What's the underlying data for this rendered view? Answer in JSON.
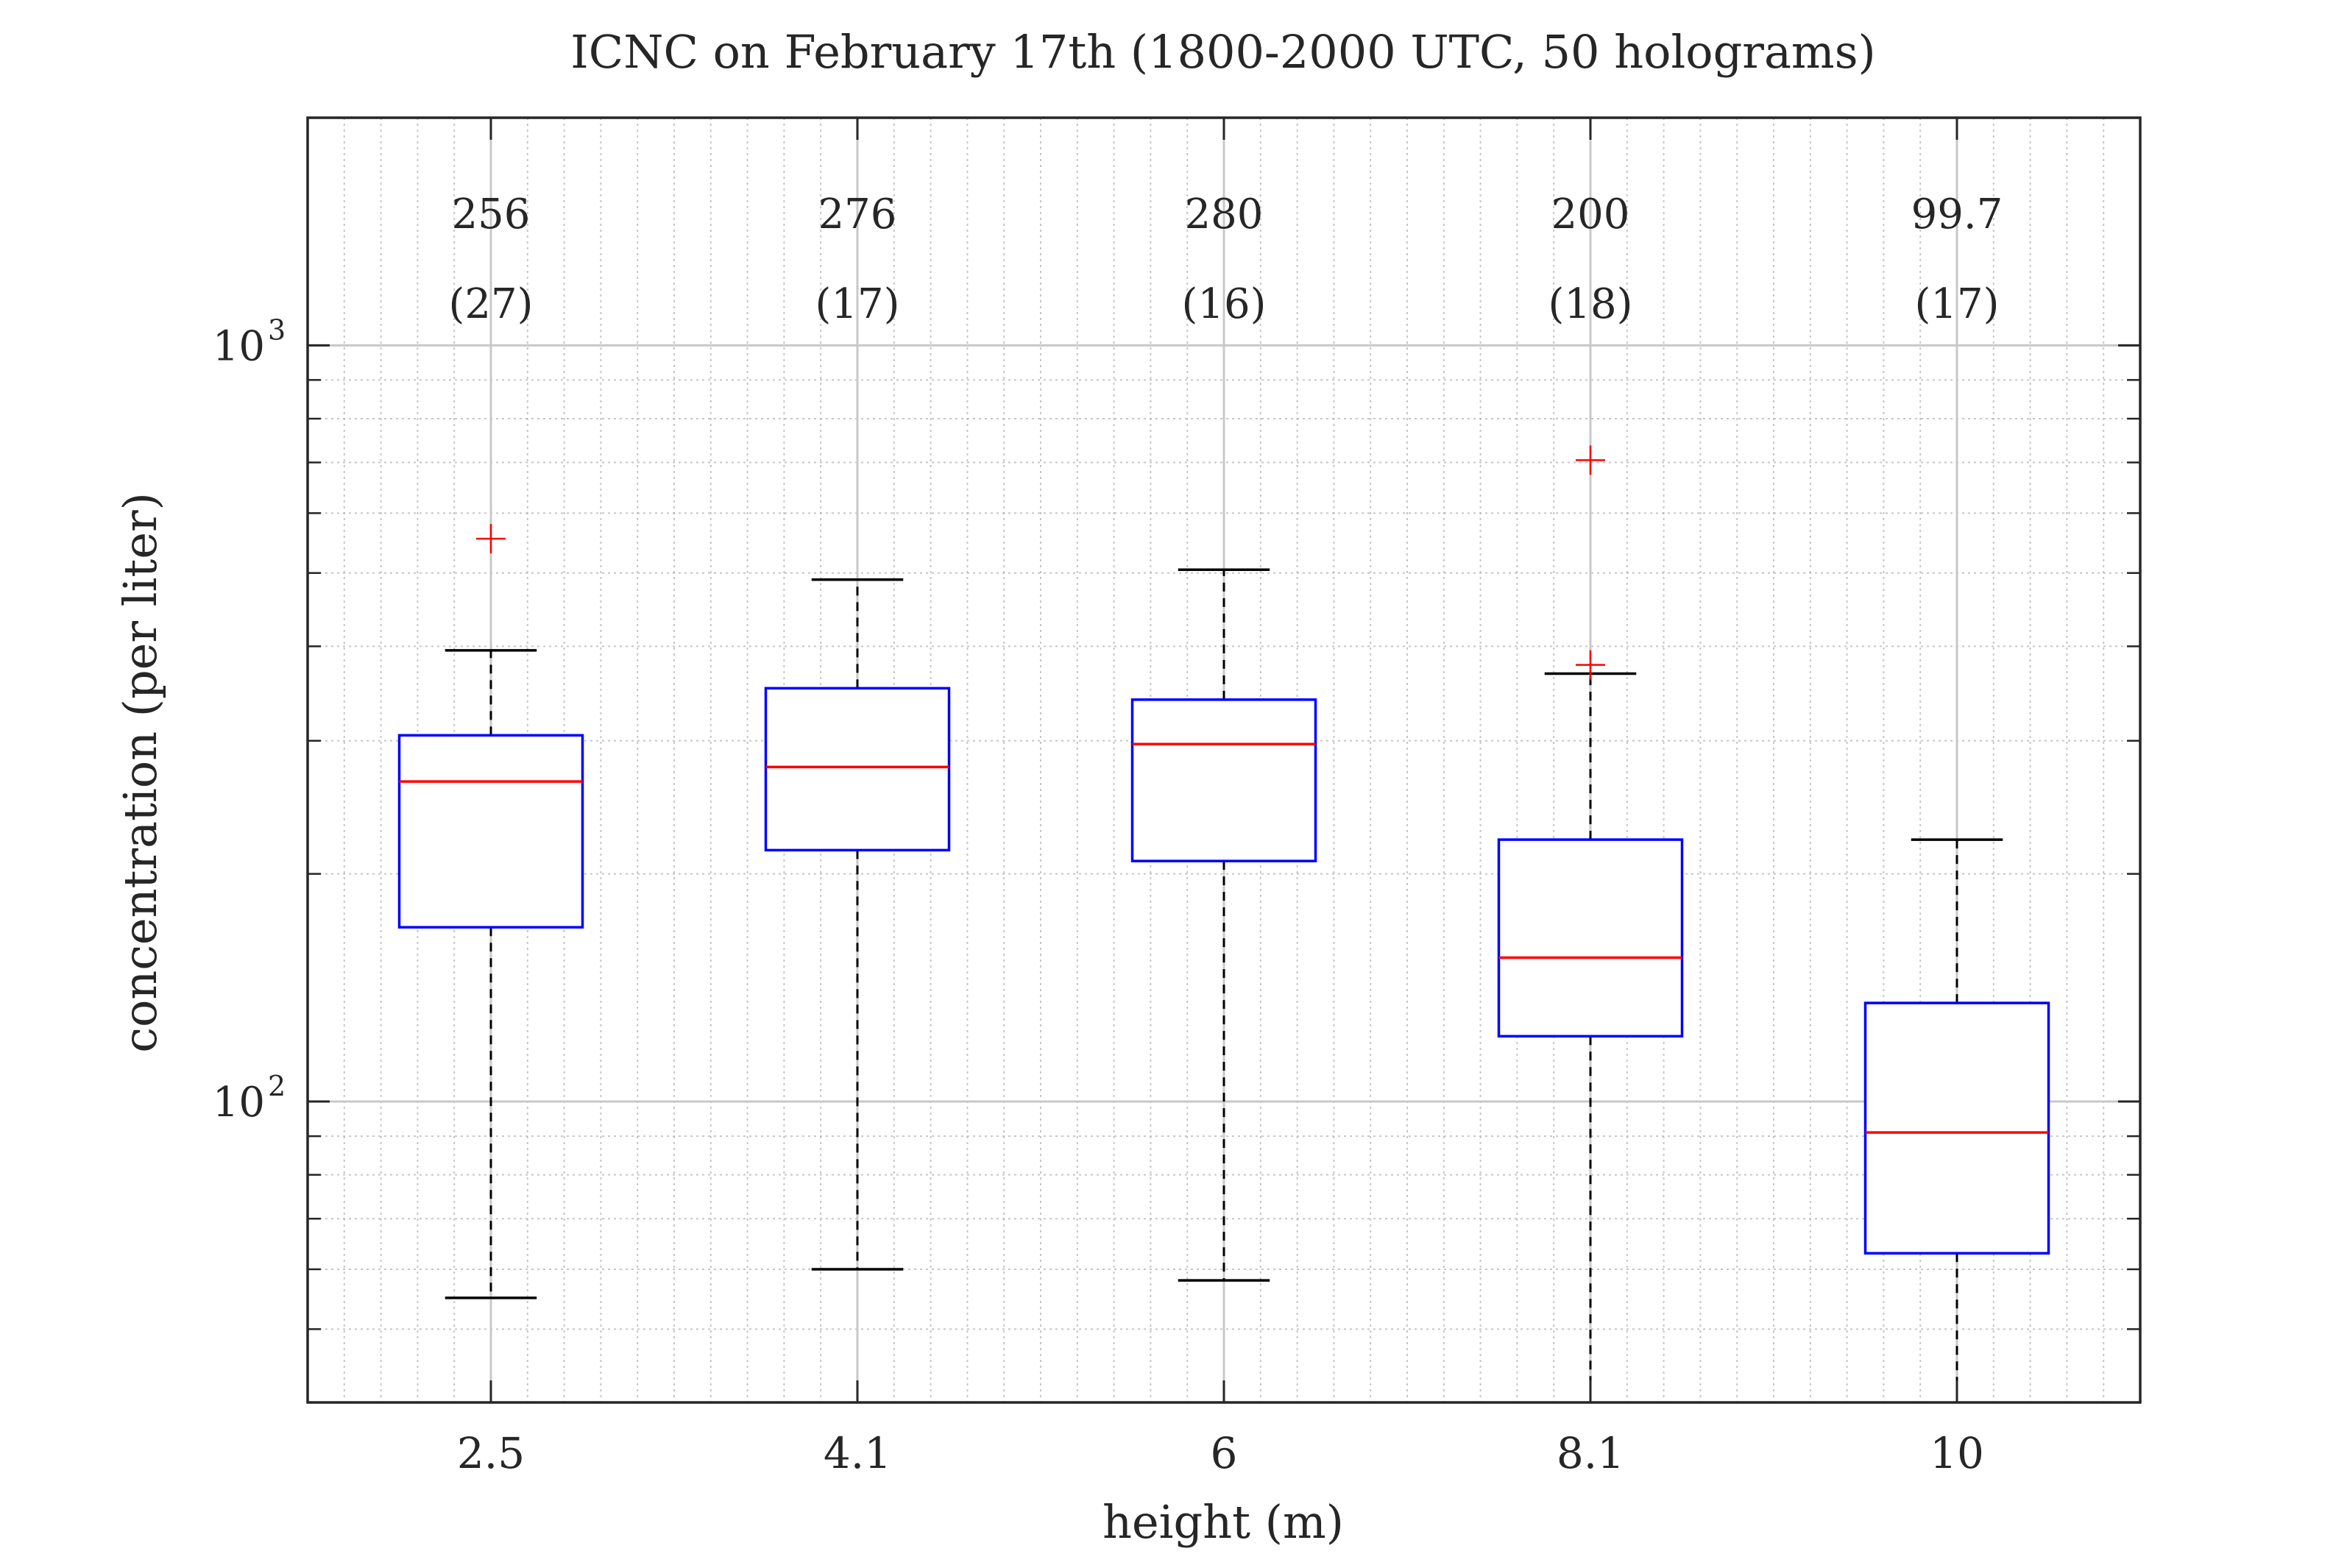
{
  "chart_data": {
    "type": "box",
    "title": "ICNC on February 17th (1800-2000 UTC, 50 holograms)",
    "xlabel": "height (m)",
    "ylabel": "concentration (per liter)",
    "yscale": "log",
    "ylim": [
      40,
      2000
    ],
    "grid": true,
    "minor_grid": true,
    "categories": [
      "2.5",
      "4.1",
      "6",
      "8.1",
      "10"
    ],
    "y_ticks": [
      {
        "value": 100,
        "base": "10",
        "exp": "2"
      },
      {
        "value": 1000,
        "base": "10",
        "exp": "3"
      }
    ],
    "boxes": [
      {
        "label": "2.5",
        "whisker_low": 55,
        "q1": 170,
        "median": 265,
        "q3": 305,
        "whisker_high": 395,
        "outliers": [
          555
        ],
        "annotation_value": "256",
        "annotation_count": "(27)"
      },
      {
        "label": "4.1",
        "whisker_low": 60,
        "q1": 215,
        "median": 277,
        "q3": 352,
        "whisker_high": 490,
        "outliers": [],
        "annotation_value": "276",
        "annotation_count": "(17)"
      },
      {
        "label": "6",
        "whisker_low": 58,
        "q1": 208,
        "median": 297,
        "q3": 340,
        "whisker_high": 505,
        "outliers": [],
        "annotation_value": "280",
        "annotation_count": "(16)"
      },
      {
        "label": "8.1",
        "whisker_low": 40,
        "q1": 122,
        "median": 155,
        "q3": 222,
        "whisker_high": 368,
        "outliers": [
          705,
          378
        ],
        "annotation_value": "200",
        "annotation_count": "(18)"
      },
      {
        "label": "10",
        "whisker_low": 40,
        "q1": 63,
        "median": 91,
        "q3": 135,
        "whisker_high": 222,
        "outliers": [],
        "annotation_value": "99.7",
        "annotation_count": "(17)"
      }
    ],
    "colors": {
      "box": "#0000ff",
      "median": "#ff0000",
      "outlier": "#ff0000",
      "whisker": "#000000",
      "axes": "#262626",
      "grid": "#b3b3b3"
    }
  }
}
